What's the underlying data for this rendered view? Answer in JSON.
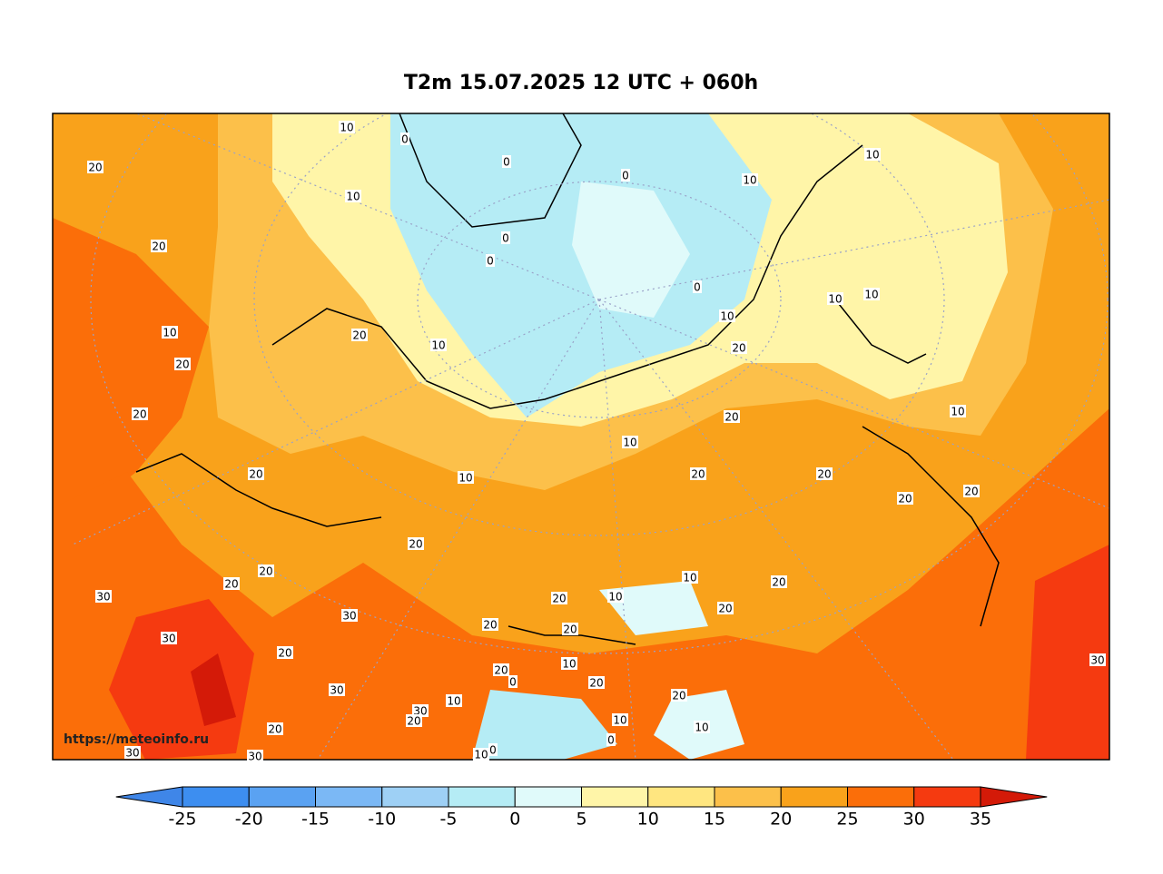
{
  "title": "T2m 15.07.2025 12 UTC + 060h",
  "watermark": "https://meteoinfo.ru",
  "colorbar": {
    "ticks": [
      -25,
      -20,
      -15,
      -10,
      -5,
      0,
      5,
      10,
      15,
      20,
      25,
      30,
      35
    ],
    "colors": [
      "#3f86e8",
      "#3d8ef0",
      "#5aa2f2",
      "#7bb8f5",
      "#9ed0f5",
      "#b5ecf5",
      "#e0fafa",
      "#fff5a8",
      "#ffe680",
      "#fcc04a",
      "#f9a21b",
      "#fb6e09",
      "#f53a10",
      "#d41a08"
    ]
  },
  "contour_labels": [
    10,
    20,
    0,
    0,
    0,
    10,
    10,
    10,
    20,
    0,
    0,
    0,
    10,
    10,
    10,
    10,
    20,
    10,
    20,
    20,
    20,
    20,
    10,
    10,
    20,
    10,
    20,
    20,
    20,
    20,
    20,
    20,
    10,
    20,
    20,
    30,
    20,
    10,
    20,
    30,
    20,
    20,
    30,
    20,
    10,
    30,
    20,
    0,
    20,
    30,
    20,
    10,
    30,
    20,
    10,
    10,
    20,
    0,
    30,
    30,
    10,
    0
  ]
}
